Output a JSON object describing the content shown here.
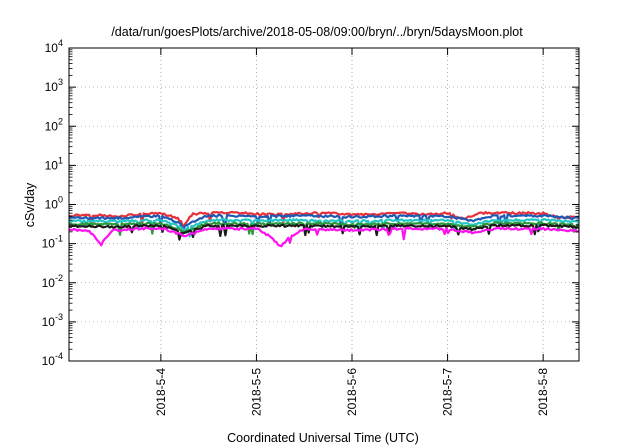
{
  "chart_data": {
    "type": "line",
    "title": "/data/run/goesPlots/archive/2018-05-08/09:00/bryn/../bryn/5daysMoon.plot",
    "xlabel": "Coordinated Universal Time (UTC)",
    "ylabel": "cSv/day",
    "yscale": "log",
    "ylim": [
      0.0001,
      10000
    ],
    "xlim": [
      "2018-05-03T00:56",
      "2018-05-08T09:00"
    ],
    "x_ticks": [
      {
        "label": "2018-5-4",
        "date": "2018-05-04"
      },
      {
        "label": "2018-5-5",
        "date": "2018-05-05"
      },
      {
        "label": "2018-5-6",
        "date": "2018-05-06"
      },
      {
        "label": "2018-5-7",
        "date": "2018-05-07"
      },
      {
        "label": "2018-5-8",
        "date": "2018-05-08"
      }
    ],
    "y_ticks": [
      {
        "base": "10",
        "exp": "-4",
        "value": 0.0001
      },
      {
        "base": "10",
        "exp": "-3",
        "value": 0.001
      },
      {
        "base": "10",
        "exp": "-2",
        "value": 0.01
      },
      {
        "base": "10",
        "exp": "-1",
        "value": 0.1
      },
      {
        "base": "10",
        "exp": "0",
        "value": 1
      },
      {
        "base": "10",
        "exp": "1",
        "value": 10
      },
      {
        "base": "10",
        "exp": "2",
        "value": 100
      },
      {
        "base": "10",
        "exp": "3",
        "value": 1000
      },
      {
        "base": "10",
        "exp": "4",
        "value": 10000
      }
    ],
    "grid": true,
    "legend": "none",
    "series": [
      {
        "color": "#e8303a",
        "baseline": 0.52,
        "x": [
          "2018-05-03T00:56",
          "2018-05-03T06:00",
          "2018-05-03T12:00",
          "2018-05-03T18:00",
          "2018-05-04T00:00",
          "2018-05-04T04:00",
          "2018-05-04T06:00",
          "2018-05-04T08:00",
          "2018-05-04T12:00",
          "2018-05-04T18:00",
          "2018-05-05T00:00",
          "2018-05-05T06:00",
          "2018-05-05T12:00",
          "2018-05-05T18:00",
          "2018-05-06T00:00",
          "2018-05-06T06:00",
          "2018-05-06T12:00",
          "2018-05-06T18:00",
          "2018-05-07T00:00",
          "2018-05-07T04:00",
          "2018-05-07T08:00",
          "2018-05-07T12:00",
          "2018-05-07T18:00",
          "2018-05-08T00:00",
          "2018-05-08T04:00",
          "2018-05-08T09:00"
        ],
        "y": [
          0.52,
          0.55,
          0.5,
          0.55,
          0.6,
          0.45,
          0.3,
          0.58,
          0.6,
          0.62,
          0.58,
          0.55,
          0.6,
          0.6,
          0.55,
          0.55,
          0.6,
          0.55,
          0.6,
          0.42,
          0.6,
          0.62,
          0.6,
          0.6,
          0.45,
          0.5
        ]
      },
      {
        "color": "#1e5ab4",
        "baseline": 0.46,
        "x": [
          "2018-05-03T00:56",
          "2018-05-03T12:00",
          "2018-05-04T00:00",
          "2018-05-04T06:00",
          "2018-05-04T12:00",
          "2018-05-05T00:00",
          "2018-05-05T12:00",
          "2018-05-06T00:00",
          "2018-05-06T12:00",
          "2018-05-07T00:00",
          "2018-05-07T06:00",
          "2018-05-07T12:00",
          "2018-05-08T00:00",
          "2018-05-08T09:00"
        ],
        "y": [
          0.46,
          0.44,
          0.52,
          0.27,
          0.52,
          0.5,
          0.52,
          0.48,
          0.52,
          0.5,
          0.38,
          0.52,
          0.52,
          0.44
        ]
      },
      {
        "color": "#22c6c6",
        "baseline": 0.38,
        "x": [
          "2018-05-03T00:56",
          "2018-05-03T12:00",
          "2018-05-04T00:00",
          "2018-05-04T06:00",
          "2018-05-04T12:00",
          "2018-05-05T00:00",
          "2018-05-05T12:00",
          "2018-05-06T00:00",
          "2018-05-06T12:00",
          "2018-05-07T00:00",
          "2018-05-07T06:00",
          "2018-05-07T12:00",
          "2018-05-08T00:00",
          "2018-05-08T09:00"
        ],
        "y": [
          0.38,
          0.37,
          0.4,
          0.23,
          0.4,
          0.39,
          0.4,
          0.37,
          0.4,
          0.39,
          0.3,
          0.4,
          0.4,
          0.36
        ]
      },
      {
        "color": "#2a9a3a",
        "baseline": 0.32,
        "x": [
          "2018-05-03T00:56",
          "2018-05-03T12:00",
          "2018-05-04T00:00",
          "2018-05-04T06:00",
          "2018-05-04T12:00",
          "2018-05-05T00:00",
          "2018-05-05T12:00",
          "2018-05-06T00:00",
          "2018-05-06T12:00",
          "2018-05-07T00:00",
          "2018-05-07T06:00",
          "2018-05-07T12:00",
          "2018-05-08T00:00",
          "2018-05-08T09:00"
        ],
        "y": [
          0.32,
          0.31,
          0.33,
          0.2,
          0.33,
          0.32,
          0.33,
          0.31,
          0.33,
          0.32,
          0.26,
          0.33,
          0.33,
          0.3
        ]
      },
      {
        "color": "#1c1c1c",
        "baseline": 0.28,
        "x": [
          "2018-05-03T00:56",
          "2018-05-03T12:00",
          "2018-05-04T00:00",
          "2018-05-04T06:00",
          "2018-05-04T12:00",
          "2018-05-05T00:00",
          "2018-05-05T12:00",
          "2018-05-06T00:00",
          "2018-05-06T12:00",
          "2018-05-07T00:00",
          "2018-05-07T06:00",
          "2018-05-07T12:00",
          "2018-05-08T00:00",
          "2018-05-08T09:00"
        ],
        "y": [
          0.28,
          0.27,
          0.29,
          0.18,
          0.29,
          0.28,
          0.29,
          0.27,
          0.29,
          0.28,
          0.23,
          0.29,
          0.29,
          0.27
        ]
      },
      {
        "color": "#ff10f0",
        "baseline": 0.24,
        "x": [
          "2018-05-03T00:56",
          "2018-05-03T06:00",
          "2018-05-03T09:00",
          "2018-05-03T12:00",
          "2018-05-03T18:00",
          "2018-05-04T00:00",
          "2018-05-04T06:00",
          "2018-05-04T12:00",
          "2018-05-05T00:00",
          "2018-05-05T06:00",
          "2018-05-05T12:00",
          "2018-05-06T00:00",
          "2018-05-06T12:00",
          "2018-05-07T00:00",
          "2018-05-07T06:00",
          "2018-05-07T12:00",
          "2018-05-08T00:00",
          "2018-05-08T09:00"
        ],
        "y": [
          0.23,
          0.21,
          0.09,
          0.22,
          0.24,
          0.25,
          0.15,
          0.24,
          0.24,
          0.08,
          0.24,
          0.22,
          0.24,
          0.24,
          0.19,
          0.24,
          0.24,
          0.21
        ]
      }
    ]
  }
}
